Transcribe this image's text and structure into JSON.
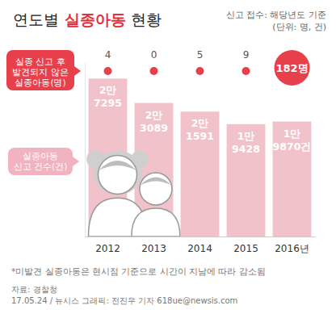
{
  "chart_data": {
    "type": "bar",
    "title": "연도별 실종아동 현황",
    "subtitle": "신고 접수: 해당년도 기준\n(단위: 명, 건)",
    "categories": [
      "2012",
      "2013",
      "2014",
      "2015",
      "2016년"
    ],
    "ylim": [
      0,
      30000
    ],
    "tick_labels": "x",
    "grid": false,
    "data_labels": true,
    "series": [
      {
        "name": "실종아동\n신고 건수(건)",
        "type": "bar",
        "color": "#f2c2ca",
        "values": [
          27295,
          23089,
          21591,
          19428,
          19870
        ],
        "value_labels": [
          "2만\n7295",
          "2만\n3089",
          "2만\n1591",
          "1만\n9428",
          "1만\n9870건"
        ]
      },
      {
        "name": "실종 신고 후\n발견되지 않은\n실종아동(명)",
        "type": "scatter",
        "color": "#e8404b",
        "marker": "circle",
        "values": [
          4,
          0,
          5,
          9,
          182
        ],
        "value_labels": [
          "4",
          "0",
          "5",
          "9",
          "182명"
        ]
      }
    ],
    "notes": [
      "*미발견 실종아동은 현시점 기준으로 시간이 지남에 따라 감소됨",
      "자료: 경찰청",
      "17.05.24 / 뉴시스 그래픽: 전진우 기자 618ue@newsis.com"
    ]
  }
}
